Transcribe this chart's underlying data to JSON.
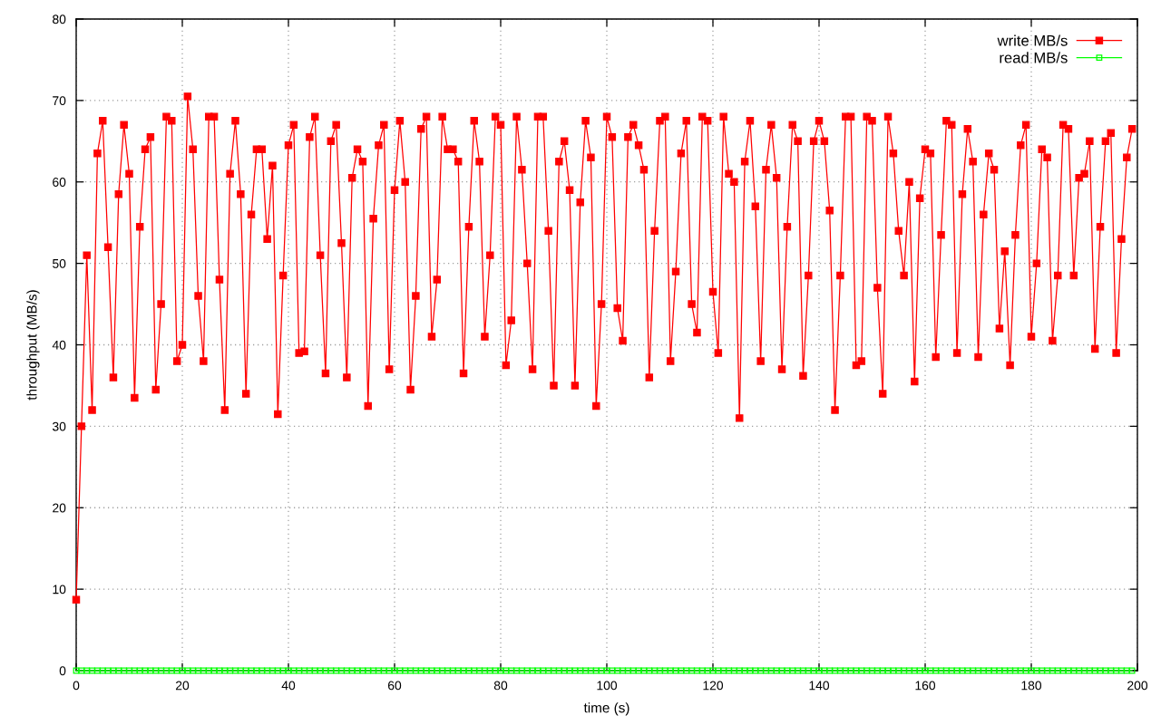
{
  "chart_data": {
    "type": "line",
    "xlabel": "time (s)",
    "ylabel": "throughput (MB/s)",
    "x": [
      0,
      1,
      2,
      3,
      4,
      5,
      6,
      7,
      8,
      9,
      10,
      11,
      12,
      13,
      14,
      15,
      16,
      17,
      18,
      19,
      20,
      21,
      22,
      23,
      24,
      25,
      26,
      27,
      28,
      29,
      30,
      31,
      32,
      33,
      34,
      35,
      36,
      37,
      38,
      39,
      40,
      41,
      42,
      43,
      44,
      45,
      46,
      47,
      48,
      49,
      50,
      51,
      52,
      53,
      54,
      55,
      56,
      57,
      58,
      59,
      60,
      61,
      62,
      63,
      64,
      65,
      66,
      67,
      68,
      69,
      70,
      71,
      72,
      73,
      74,
      75,
      76,
      77,
      78,
      79,
      80,
      81,
      82,
      83,
      84,
      85,
      86,
      87,
      88,
      89,
      90,
      91,
      92,
      93,
      94,
      95,
      96,
      97,
      98,
      99,
      100,
      101,
      102,
      103,
      104,
      105,
      106,
      107,
      108,
      109,
      110,
      111,
      112,
      113,
      114,
      115,
      116,
      117,
      118,
      119,
      120,
      121,
      122,
      123,
      124,
      125,
      126,
      127,
      128,
      129,
      130,
      131,
      132,
      133,
      134,
      135,
      136,
      137,
      138,
      139,
      140,
      141,
      142,
      143,
      144,
      145,
      146,
      147,
      148,
      149,
      150,
      151,
      152,
      153,
      154,
      155,
      156,
      157,
      158,
      159,
      160,
      161,
      162,
      163,
      164,
      165,
      166,
      167,
      168,
      169,
      170,
      171,
      172,
      173,
      174,
      175,
      176,
      177,
      178,
      179,
      180,
      181,
      182,
      183,
      184,
      185,
      186,
      187,
      188,
      189,
      190,
      191,
      192,
      193,
      194,
      195,
      196,
      197,
      198,
      199
    ],
    "series": [
      {
        "name": "write MB/s",
        "color": "#ff0000",
        "values": [
          8.7,
          30,
          51,
          32,
          63.5,
          67.5,
          52,
          36,
          58.5,
          67,
          61,
          33.5,
          54.5,
          64,
          65.5,
          34.5,
          45,
          68,
          67.5,
          38,
          40,
          70.5,
          64,
          46,
          38,
          68,
          68,
          48,
          32,
          61,
          67.5,
          58.5,
          34,
          56,
          64,
          64,
          53,
          62,
          31.5,
          48.5,
          64.5,
          67,
          39,
          39.2,
          65.5,
          68,
          51,
          36.5,
          65,
          67,
          52.5,
          36,
          60.5,
          64,
          62.5,
          32.5,
          55.5,
          64.5,
          67,
          37,
          59,
          67.5,
          60,
          34.5,
          46,
          66.5,
          68,
          41,
          48,
          68,
          64,
          64,
          62.5,
          36.5,
          54.5,
          67.5,
          62.5,
          41,
          51,
          68,
          67,
          37.5,
          43,
          68,
          61.5,
          50,
          37,
          68,
          68,
          54,
          35,
          62.5,
          65,
          59,
          35,
          57.5,
          67.5,
          63,
          32.5,
          45,
          68,
          65.5,
          44.5,
          40.5,
          65.5,
          67,
          64.5,
          61.5,
          36,
          54,
          67.5,
          68,
          38,
          49,
          63.5,
          67.5,
          45,
          41.5,
          68,
          67.5,
          46.5,
          39,
          68,
          61,
          60,
          31,
          62.5,
          67.5,
          57,
          38,
          61.5,
          67,
          60.5,
          37,
          54.5,
          67,
          65,
          36.2,
          48.5,
          65,
          67.5,
          65,
          56.5,
          32,
          48.5,
          68,
          68,
          37.5,
          38,
          68,
          67.5,
          47,
          34,
          68,
          63.5,
          54,
          48.5,
          60,
          35.5,
          58,
          64,
          63.5,
          38.5,
          53.5,
          67.5,
          67,
          39,
          58.5,
          66.5,
          62.5,
          38.5,
          56,
          63.5,
          61.5,
          42,
          51.5,
          37.5,
          53.5,
          64.5,
          67,
          41,
          50,
          64,
          63,
          40.5,
          48.5,
          67,
          66.5,
          48.5,
          60.5,
          61,
          65,
          39.5,
          54.5,
          65,
          66,
          39,
          53,
          63,
          66.5
        ]
      },
      {
        "name": "read MB/s",
        "color": "#00ff00",
        "values": [
          0,
          0,
          0,
          0,
          0,
          0,
          0,
          0,
          0,
          0,
          0,
          0,
          0,
          0,
          0,
          0,
          0,
          0,
          0,
          0,
          0,
          0,
          0,
          0,
          0,
          0,
          0,
          0,
          0,
          0,
          0,
          0,
          0,
          0,
          0,
          0,
          0,
          0,
          0,
          0,
          0,
          0,
          0,
          0,
          0,
          0,
          0,
          0,
          0,
          0,
          0,
          0,
          0,
          0,
          0,
          0,
          0,
          0,
          0,
          0,
          0,
          0,
          0,
          0,
          0,
          0,
          0,
          0,
          0,
          0,
          0,
          0,
          0,
          0,
          0,
          0,
          0,
          0,
          0,
          0,
          0,
          0,
          0,
          0,
          0,
          0,
          0,
          0,
          0,
          0,
          0,
          0,
          0,
          0,
          0,
          0,
          0,
          0,
          0,
          0,
          0,
          0,
          0,
          0,
          0,
          0,
          0,
          0,
          0,
          0,
          0,
          0,
          0,
          0,
          0,
          0,
          0,
          0,
          0,
          0,
          0,
          0,
          0,
          0,
          0,
          0,
          0,
          0,
          0,
          0,
          0,
          0,
          0,
          0,
          0,
          0,
          0,
          0,
          0,
          0,
          0,
          0,
          0,
          0,
          0,
          0,
          0,
          0,
          0,
          0,
          0,
          0,
          0,
          0,
          0,
          0,
          0,
          0,
          0,
          0,
          0,
          0,
          0,
          0,
          0,
          0,
          0,
          0,
          0,
          0,
          0,
          0,
          0,
          0,
          0,
          0,
          0,
          0,
          0,
          0,
          0,
          0,
          0,
          0,
          0,
          0,
          0,
          0,
          0,
          0,
          0,
          0,
          0,
          0,
          0,
          0,
          0,
          0,
          0,
          0
        ]
      }
    ],
    "xlim": [
      0,
      200
    ],
    "ylim": [
      0,
      80
    ],
    "xticks": [
      0,
      20,
      40,
      60,
      80,
      100,
      120,
      140,
      160,
      180,
      200
    ],
    "yticks": [
      0,
      10,
      20,
      30,
      40,
      50,
      60,
      70,
      80
    ],
    "grid": true,
    "legend": "top right",
    "marker": "square",
    "line_style": "solid"
  }
}
